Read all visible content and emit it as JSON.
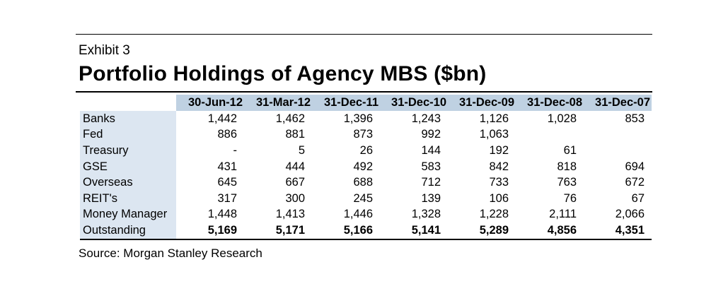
{
  "exhibit_label": "Exhibit 3",
  "title": "Portfolio Holdings of Agency MBS ($bn)",
  "table": {
    "columns": [
      "30-Jun-12",
      "31-Mar-12",
      "31-Dec-11",
      "31-Dec-10",
      "31-Dec-09",
      "31-Dec-08",
      "31-Dec-07"
    ],
    "rows": [
      {
        "label": "Banks",
        "values": [
          "1,442",
          "1,462",
          "1,396",
          "1,243",
          "1,126",
          "1,028",
          "853"
        ]
      },
      {
        "label": "Fed",
        "values": [
          "886",
          "881",
          "873",
          "992",
          "1,063",
          "",
          ""
        ]
      },
      {
        "label": "Treasury",
        "values": [
          "-",
          "5",
          "26",
          "144",
          "192",
          "61",
          ""
        ]
      },
      {
        "label": "GSE",
        "values": [
          "431",
          "444",
          "492",
          "583",
          "842",
          "818",
          "694"
        ]
      },
      {
        "label": "Overseas",
        "values": [
          "645",
          "667",
          "688",
          "712",
          "733",
          "763",
          "672"
        ]
      },
      {
        "label": "REIT's",
        "values": [
          "317",
          "300",
          "245",
          "139",
          "106",
          "76",
          "67"
        ]
      },
      {
        "label": "Money Manager",
        "values": [
          "1,448",
          "1,413",
          "1,446",
          "1,328",
          "1,228",
          "2,111",
          "2,066"
        ]
      },
      {
        "label": "Outstanding",
        "values": [
          "5,169",
          "5,171",
          "5,166",
          "5,141",
          "5,289",
          "4,856",
          "4,351"
        ]
      }
    ]
  },
  "source": "Source: Morgan Stanley Research"
}
